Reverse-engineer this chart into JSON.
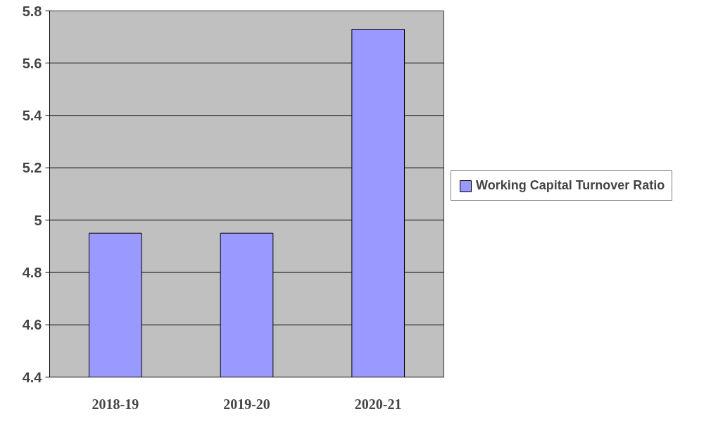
{
  "chart_data": {
    "type": "bar",
    "categories": [
      "2018-19",
      "2019-20",
      "2020-21"
    ],
    "series": [
      {
        "name": "Working Capital Turnover Ratio",
        "color": "#9999ff",
        "values": [
          4.95,
          4.95,
          5.73
        ]
      }
    ],
    "ylim": [
      4.4,
      5.8
    ],
    "yticks": [
      4.4,
      4.6,
      4.8,
      {
        "value": 5,
        "label": "5"
      },
      5.2,
      5.4,
      5.6,
      5.8
    ],
    "grid": "y",
    "legend": "right"
  }
}
